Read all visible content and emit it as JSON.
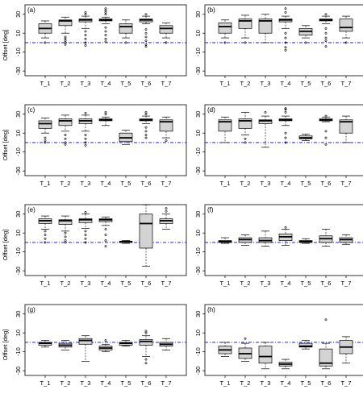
{
  "figure": {
    "ylabel": "Offset [deg]",
    "colors": {
      "box_fill": "#d3d3d3",
      "reference_line": "#0000cc",
      "ink": "#000000"
    },
    "reference_line_value": 0,
    "ylim": [
      -35,
      40
    ],
    "yticks": [
      30,
      10,
      -10,
      -30
    ],
    "categories": [
      "T_1",
      "T_2",
      "T_3",
      "T_4",
      "T_5",
      "T_6",
      "T_7"
    ]
  },
  "chart_data": [
    {
      "type": "box",
      "panel_label": "(a)",
      "boxes": [
        {
          "category": "T_1",
          "whisker_low": 5,
          "q1": 10,
          "median": 15,
          "q3": 20,
          "whisker_high": 23,
          "outliers": [
            0
          ]
        },
        {
          "category": "T_2",
          "whisker_low": 10,
          "q1": 18,
          "median": 23,
          "q3": 24,
          "whisker_high": 27,
          "outliers": [
            6,
            4,
            2,
            0,
            -2
          ]
        },
        {
          "category": "T_3",
          "whisker_low": 15,
          "q1": 22,
          "median": 24,
          "q3": 25,
          "whisker_high": 28,
          "outliers": [
            30,
            32,
            12,
            8,
            4,
            0,
            -3
          ]
        },
        {
          "category": "T_4",
          "whisker_low": 20,
          "q1": 23,
          "median": 24,
          "q3": 25,
          "whisker_high": 27,
          "outliers": [
            30,
            32,
            34,
            36,
            16,
            12,
            8,
            4,
            1
          ]
        },
        {
          "category": "T_5",
          "whisker_low": 5,
          "q1": 10,
          "median": 17,
          "q3": 20,
          "whisker_high": 24,
          "outliers": [
            0
          ]
        },
        {
          "category": "T_6",
          "whisker_low": 20,
          "q1": 22,
          "median": 24,
          "q3": 25,
          "whisker_high": 28,
          "outliers": [
            30,
            14,
            10,
            6,
            2,
            -2,
            -4
          ]
        },
        {
          "category": "T_7",
          "whisker_low": 5,
          "q1": 10,
          "median": 15,
          "q3": 18,
          "whisker_high": 21,
          "outliers": [
            0
          ]
        }
      ]
    },
    {
      "type": "box",
      "panel_label": "(b)",
      "boxes": [
        {
          "category": "T_1",
          "whisker_low": 5,
          "q1": 10,
          "median": 17,
          "q3": 21,
          "whisker_high": 24,
          "outliers": [
            0
          ]
        },
        {
          "category": "T_2",
          "whisker_low": 5,
          "q1": 15,
          "median": 23,
          "q3": 25,
          "whisker_high": 29,
          "outliers": [
            0
          ]
        },
        {
          "category": "T_3",
          "whisker_low": 0,
          "q1": 10,
          "median": 23,
          "q3": 25,
          "whisker_high": 30,
          "outliers": []
        },
        {
          "category": "T_4",
          "whisker_low": 15,
          "q1": 22,
          "median": 24,
          "q3": 25,
          "whisker_high": 28,
          "outliers": [
            32,
            36,
            10,
            5,
            0,
            -5,
            -8
          ]
        },
        {
          "category": "T_5",
          "whisker_low": 5,
          "q1": 8,
          "median": 12,
          "q3": 15,
          "whisker_high": 18,
          "outliers": [
            0
          ]
        },
        {
          "category": "T_6",
          "whisker_low": 20,
          "q1": 23,
          "median": 24,
          "q3": 25,
          "whisker_high": 28,
          "outliers": [
            30,
            15,
            10,
            5,
            2,
            -4
          ]
        },
        {
          "category": "T_7",
          "whisker_low": 5,
          "q1": 12,
          "median": 16,
          "q3": 25,
          "whisker_high": 28,
          "outliers": [
            0
          ]
        }
      ]
    },
    {
      "type": "box",
      "panel_label": "(c)",
      "boxes": [
        {
          "category": "T_1",
          "whisker_low": 10,
          "q1": 15,
          "median": 20,
          "q3": 23,
          "whisker_high": 26,
          "outliers": [
            5,
            2,
            0
          ]
        },
        {
          "category": "T_2",
          "whisker_low": 12,
          "q1": 18,
          "median": 23,
          "q3": 25,
          "whisker_high": 29,
          "outliers": [
            8,
            4,
            0,
            -2
          ]
        },
        {
          "category": "T_3",
          "whisker_low": 12,
          "q1": 20,
          "median": 23,
          "q3": 25,
          "whisker_high": 29,
          "outliers": [
            31,
            8,
            4,
            0,
            -3
          ]
        },
        {
          "category": "T_4",
          "whisker_low": 18,
          "q1": 23,
          "median": 24,
          "q3": 25,
          "whisker_high": 27,
          "outliers": [
            30,
            32
          ]
        },
        {
          "category": "T_5",
          "whisker_low": -2,
          "q1": 1,
          "median": 5,
          "q3": 10,
          "whisker_high": 13,
          "outliers": []
        },
        {
          "category": "T_6",
          "whisker_low": 20,
          "q1": 23,
          "median": 24,
          "q3": 25,
          "whisker_high": 28,
          "outliers": [
            30,
            32,
            16,
            12,
            8,
            5
          ]
        },
        {
          "category": "T_7",
          "whisker_low": 5,
          "q1": 12,
          "median": 22,
          "q3": 24,
          "whisker_high": 27,
          "outliers": [
            2
          ]
        }
      ]
    },
    {
      "type": "box",
      "panel_label": "(d)",
      "boxes": [
        {
          "category": "T_1",
          "whisker_low": 0,
          "q1": 12,
          "median": 22,
          "q3": 24,
          "whisker_high": 27,
          "outliers": []
        },
        {
          "category": "T_2",
          "whisker_low": 8,
          "q1": 15,
          "median": 23,
          "q3": 25,
          "whisker_high": 32,
          "outliers": [
            4,
            0
          ]
        },
        {
          "category": "T_3",
          "whisker_low": -5,
          "q1": 20,
          "median": 23,
          "q3": 24,
          "whisker_high": 28,
          "outliers": [
            32
          ]
        },
        {
          "category": "T_4",
          "whisker_low": 18,
          "q1": 23,
          "median": 24,
          "q3": 25,
          "whisker_high": 28,
          "outliers": [
            32,
            35,
            36,
            10,
            5,
            0
          ]
        },
        {
          "category": "T_5",
          "whisker_low": 2,
          "q1": 4,
          "median": 5,
          "q3": 7,
          "whisker_high": 9,
          "outliers": []
        },
        {
          "category": "T_6",
          "whisker_low": 22,
          "q1": 23,
          "median": 24,
          "q3": 25,
          "whisker_high": 27,
          "outliers": [
            28,
            12,
            5,
            -2
          ]
        },
        {
          "category": "T_7",
          "whisker_low": 0,
          "q1": 10,
          "median": 22,
          "q3": 24,
          "whisker_high": 28,
          "outliers": []
        }
      ]
    },
    {
      "type": "box",
      "panel_label": "(e)",
      "boxes": [
        {
          "category": "T_1",
          "whisker_low": 14,
          "q1": 20,
          "median": 23,
          "q3": 25,
          "whisker_high": 28,
          "outliers": [
            12,
            8,
            4,
            0
          ]
        },
        {
          "category": "T_2",
          "whisker_low": 12,
          "q1": 19,
          "median": 23,
          "q3": 24,
          "whisker_high": 28,
          "outliers": [
            10,
            6,
            2,
            0
          ]
        },
        {
          "category": "T_3",
          "whisker_low": 15,
          "q1": 21,
          "median": 24,
          "q3": 25,
          "whisker_high": 30,
          "outliers": [
            32,
            12,
            8,
            4,
            0
          ]
        },
        {
          "category": "T_4",
          "whisker_low": 18,
          "q1": 22,
          "median": 24,
          "q3": 25,
          "whisker_high": 27,
          "outliers": [
            14,
            8,
            2,
            -4
          ]
        },
        {
          "category": "T_5",
          "whisker_low": -1,
          "q1": 0,
          "median": 1,
          "q3": 1,
          "whisker_high": 2,
          "outliers": []
        },
        {
          "category": "T_6",
          "whisker_low": -25,
          "q1": -6,
          "median": 20,
          "q3": 30,
          "whisker_high": 40,
          "outliers": []
        },
        {
          "category": "T_7",
          "whisker_low": 14,
          "q1": 20,
          "median": 23,
          "q3": 25,
          "whisker_high": 30,
          "outliers": [
            33,
            36
          ]
        }
      ]
    },
    {
      "type": "box",
      "panel_label": "(f)",
      "boxes": [
        {
          "category": "T_1",
          "whisker_low": -1,
          "q1": 0,
          "median": 1,
          "q3": 2,
          "whisker_high": 5,
          "outliers": []
        },
        {
          "category": "T_2",
          "whisker_low": -3,
          "q1": 0,
          "median": 3,
          "q3": 5,
          "whisker_high": 8,
          "outliers": []
        },
        {
          "category": "T_3",
          "whisker_low": -4,
          "q1": 0,
          "median": 2,
          "q3": 5,
          "whisker_high": 12,
          "outliers": []
        },
        {
          "category": "T_4",
          "whisker_low": -3,
          "q1": 2,
          "median": 6,
          "q3": 9,
          "whisker_high": 14,
          "outliers": [
            16
          ]
        },
        {
          "category": "T_5",
          "whisker_low": -1,
          "q1": 0,
          "median": 1,
          "q3": 2,
          "whisker_high": 4,
          "outliers": []
        },
        {
          "category": "T_6",
          "whisker_low": -4,
          "q1": 0,
          "median": 4,
          "q3": 7,
          "whisker_high": 14,
          "outliers": []
        },
        {
          "category": "T_7",
          "whisker_low": -2,
          "q1": 0,
          "median": 3,
          "q3": 5,
          "whisker_high": 8,
          "outliers": []
        }
      ]
    },
    {
      "type": "box",
      "panel_label": "(g)",
      "boxes": [
        {
          "category": "T_1",
          "whisker_low": -5,
          "q1": -3,
          "median": -1,
          "q3": 0,
          "whisker_high": 2,
          "outliers": []
        },
        {
          "category": "T_2",
          "whisker_low": -8,
          "q1": -5,
          "median": -3,
          "q3": -1,
          "whisker_high": 2,
          "outliers": []
        },
        {
          "category": "T_3",
          "whisker_low": -20,
          "q1": -2,
          "median": 2,
          "q3": 4,
          "whisker_high": 7,
          "outliers": []
        },
        {
          "category": "T_4",
          "whisker_low": -10,
          "q1": -8,
          "median": -6,
          "q3": -4,
          "whisker_high": -2,
          "outliers": [
            2
          ]
        },
        {
          "category": "T_5",
          "whisker_low": -4,
          "q1": -3,
          "median": -1,
          "q3": 0,
          "whisker_high": 2,
          "outliers": []
        },
        {
          "category": "T_6",
          "whisker_low": -15,
          "q1": -3,
          "median": 1,
          "q3": 3,
          "whisker_high": 7,
          "outliers": [
            12,
            10,
            -18,
            -22
          ]
        },
        {
          "category": "T_7",
          "whisker_low": -8,
          "q1": -4,
          "median": -2,
          "q3": 0,
          "whisker_high": 4,
          "outliers": []
        }
      ]
    },
    {
      "type": "box",
      "panel_label": "(h)",
      "boxes": [
        {
          "category": "T_1",
          "whisker_low": -15,
          "q1": -12,
          "median": -8,
          "q3": -4,
          "whisker_high": 0,
          "outliers": []
        },
        {
          "category": "T_2",
          "whisker_low": -20,
          "q1": -17,
          "median": -12,
          "q3": -6,
          "whisker_high": -1,
          "outliers": [
            4
          ]
        },
        {
          "category": "T_3",
          "whisker_low": -28,
          "q1": -22,
          "median": -15,
          "q3": -4,
          "whisker_high": 0,
          "outliers": []
        },
        {
          "category": "T_4",
          "whisker_low": -28,
          "q1": -25,
          "median": -23,
          "q3": -21,
          "whisker_high": -18,
          "outliers": []
        },
        {
          "category": "T_5",
          "whisker_low": -7,
          "q1": -5,
          "median": -4,
          "q3": -1,
          "whisker_high": 2,
          "outliers": []
        },
        {
          "category": "T_6",
          "whisker_low": -28,
          "q1": -25,
          "median": -22,
          "q3": -7,
          "whisker_high": -1,
          "outliers": [
            24
          ]
        },
        {
          "category": "T_7",
          "whisker_low": -22,
          "q1": -12,
          "median": -5,
          "q3": 2,
          "whisker_high": 6,
          "outliers": []
        }
      ]
    }
  ]
}
